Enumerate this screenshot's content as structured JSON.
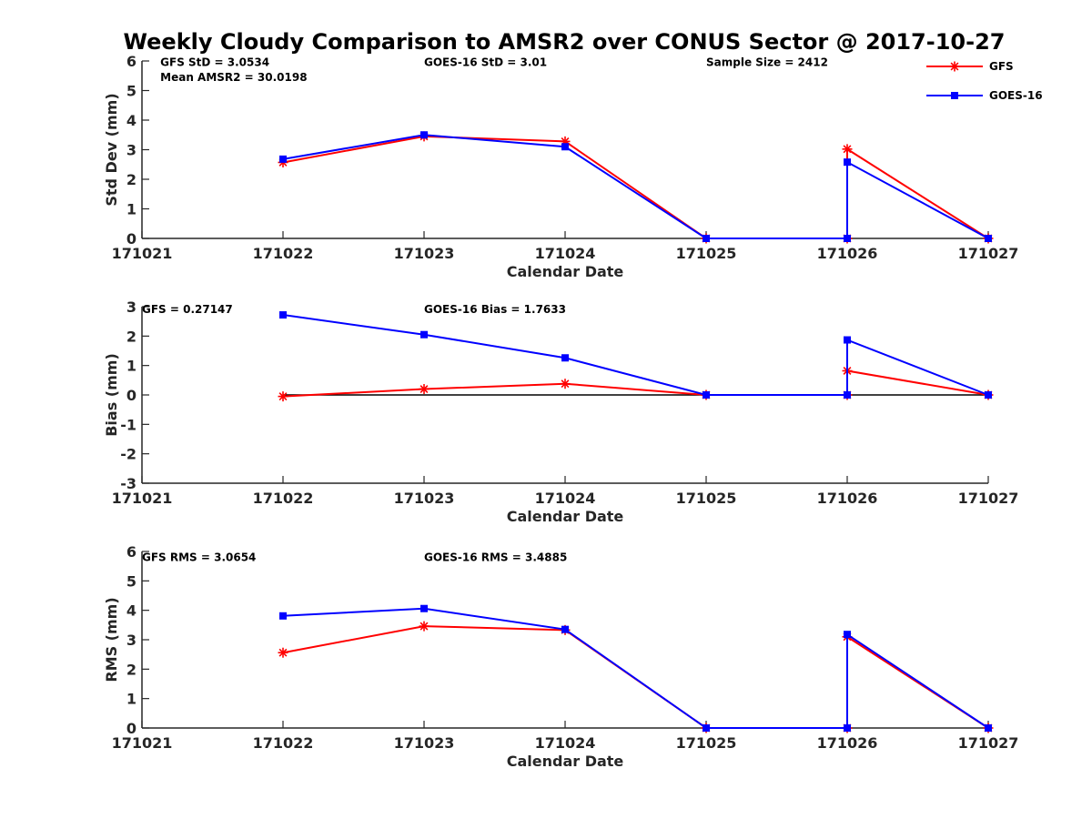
{
  "title": "Weekly Cloudy Comparison to AMSR2 over CONUS Sector @ 2017-10-27",
  "colors": {
    "gfs": "#ff0000",
    "goes": "#0000ff",
    "axis": "#262626",
    "zero_line": "#000000"
  },
  "legend": {
    "items": [
      "GFS",
      "GOES-16"
    ],
    "location": "top-right"
  },
  "chart_data": [
    {
      "type": "line",
      "id": "stddev",
      "xlabel": "Calendar Date",
      "ylabel": "Std Dev (mm)",
      "x": [
        171021,
        171022,
        171023,
        171024,
        171025,
        171026,
        171027
      ],
      "x_tick_labels": [
        "171021",
        "171022",
        "171023",
        "171024",
        "171025",
        "171026",
        "171027"
      ],
      "xlim": [
        171021,
        171027
      ],
      "ylim": [
        0,
        6
      ],
      "y_ticks": [
        0,
        1,
        2,
        3,
        4,
        5,
        6
      ],
      "grid": false,
      "series": [
        {
          "name": "GFS",
          "marker": "asterisk",
          "points": [
            [
              171022,
              2.57
            ],
            [
              171023,
              3.45
            ],
            [
              171024,
              3.28
            ],
            [
              171025,
              0
            ],
            [
              171026,
              0
            ],
            [
              171026,
              3.02
            ],
            [
              171027,
              0
            ]
          ]
        },
        {
          "name": "GOES-16",
          "marker": "square",
          "points": [
            [
              171022,
              2.68
            ],
            [
              171023,
              3.5
            ],
            [
              171024,
              3.1
            ],
            [
              171025,
              0
            ],
            [
              171026,
              0
            ],
            [
              171026,
              2.58
            ],
            [
              171027,
              0
            ]
          ]
        }
      ],
      "annotations": [
        {
          "text": "GFS StD = 3.0534",
          "anchor": [
            171021.13,
            5.95
          ]
        },
        {
          "text": "Mean AMSR2 = 30.0198",
          "anchor": [
            171021.13,
            5.45
          ]
        },
        {
          "text": "GOES-16 StD = 3.01",
          "anchor": [
            171023.0,
            5.95
          ]
        },
        {
          "text": "Sample Size = 2412",
          "anchor": [
            171025.0,
            5.95
          ]
        }
      ]
    },
    {
      "type": "line",
      "id": "bias",
      "xlabel": "Calendar Date",
      "ylabel": "Bias (mm)",
      "x": [
        171021,
        171022,
        171023,
        171024,
        171025,
        171026,
        171027
      ],
      "x_tick_labels": [
        "171021",
        "171022",
        "171023",
        "171024",
        "171025",
        "171026",
        "171027"
      ],
      "xlim": [
        171021,
        171027
      ],
      "ylim": [
        -3,
        3
      ],
      "y_ticks": [
        -3,
        -2,
        -1,
        0,
        1,
        2,
        3
      ],
      "grid": false,
      "zero_line": true,
      "series": [
        {
          "name": "GFS",
          "marker": "asterisk",
          "points": [
            [
              171022,
              -0.05
            ],
            [
              171023,
              0.2
            ],
            [
              171024,
              0.38
            ],
            [
              171025,
              0
            ],
            [
              171026,
              0
            ],
            [
              171026,
              0.82
            ],
            [
              171027,
              0
            ]
          ]
        },
        {
          "name": "GOES-16",
          "marker": "square",
          "points": [
            [
              171022,
              2.72
            ],
            [
              171023,
              2.05
            ],
            [
              171024,
              1.26
            ],
            [
              171025,
              0
            ],
            [
              171026,
              0
            ],
            [
              171026,
              1.87
            ],
            [
              171027,
              0
            ]
          ]
        }
      ],
      "annotations": [
        {
          "text": "GFS = 0.27147",
          "anchor": [
            171021.0,
            2.9
          ]
        },
        {
          "text": "GOES-16 Bias  = 1.7633",
          "anchor": [
            171023.0,
            2.9
          ]
        }
      ]
    },
    {
      "type": "line",
      "id": "rms",
      "xlabel": "Calendar Date",
      "ylabel": "RMS (mm)",
      "x": [
        171021,
        171022,
        171023,
        171024,
        171025,
        171026,
        171027
      ],
      "x_tick_labels": [
        "171021",
        "171022",
        "171023",
        "171024",
        "171025",
        "171026",
        "171027"
      ],
      "xlim": [
        171021,
        171027
      ],
      "ylim": [
        0,
        6
      ],
      "y_ticks": [
        0,
        1,
        2,
        3,
        4,
        5,
        6
      ],
      "grid": false,
      "series": [
        {
          "name": "GFS",
          "marker": "asterisk",
          "points": [
            [
              171022,
              2.56
            ],
            [
              171023,
              3.46
            ],
            [
              171024,
              3.33
            ],
            [
              171025,
              0
            ],
            [
              171026,
              0
            ],
            [
              171026,
              3.1
            ],
            [
              171027,
              0
            ]
          ]
        },
        {
          "name": "GOES-16",
          "marker": "square",
          "points": [
            [
              171022,
              3.81
            ],
            [
              171023,
              4.06
            ],
            [
              171024,
              3.35
            ],
            [
              171025,
              0
            ],
            [
              171026,
              0
            ],
            [
              171026,
              3.18
            ],
            [
              171027,
              0
            ]
          ]
        }
      ],
      "annotations": [
        {
          "text": "GFS RMS = 3.0654",
          "anchor": [
            171021.0,
            5.8
          ]
        },
        {
          "text": "GOES-16 RMS = 3.4885",
          "anchor": [
            171023.0,
            5.8
          ]
        }
      ]
    }
  ]
}
